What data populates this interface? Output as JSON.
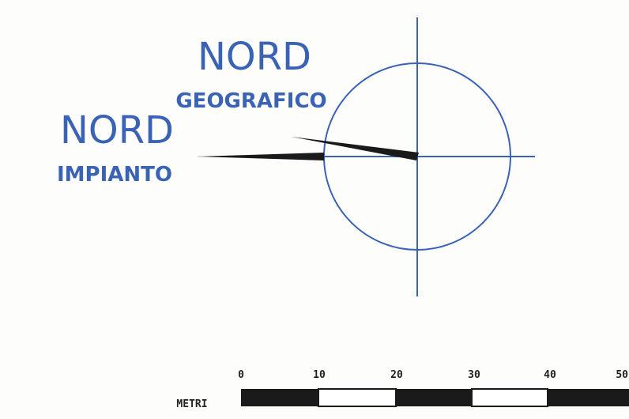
{
  "labels": {
    "geo_title": "NORD",
    "geo_subtitle": "GEOGRAFICO",
    "plant_title": "NORD",
    "plant_subtitle": "IMPIANTO"
  },
  "scale": {
    "unit_label": "METRI",
    "ticks": [
      "0",
      "10",
      "20",
      "30",
      "40",
      "50"
    ]
  },
  "colors": {
    "blue": "#3a62b5",
    "black": "#1a1a1a",
    "background": "#fdfdfb"
  },
  "icons": [
    "compass-circle",
    "north-arrow-geographic",
    "north-arrow-plant"
  ]
}
